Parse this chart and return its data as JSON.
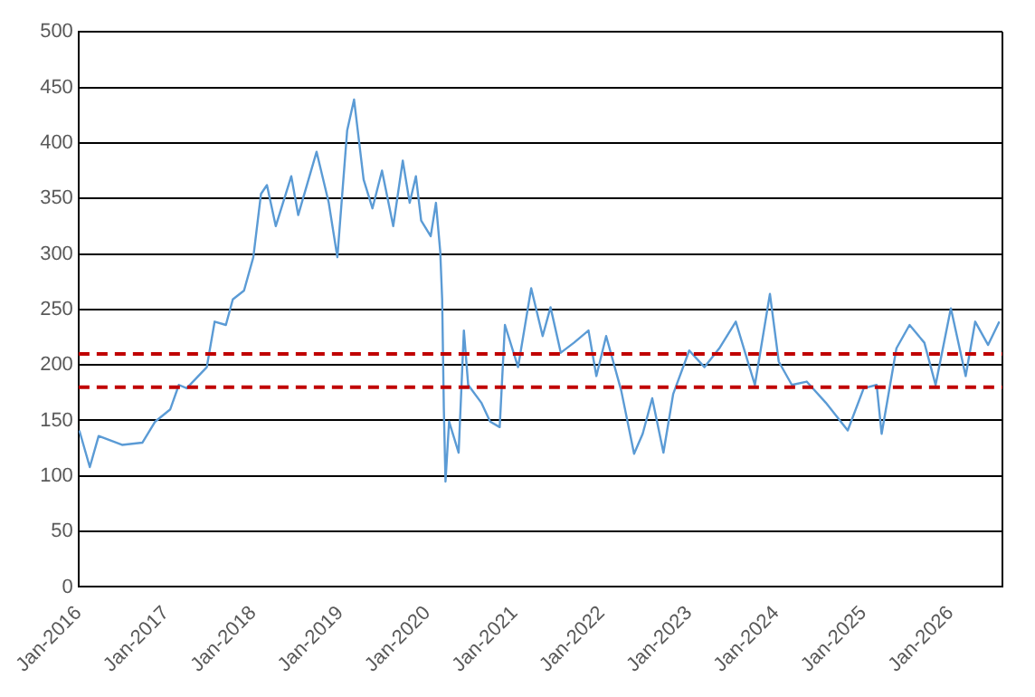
{
  "chart_data": {
    "type": "line",
    "x": [
      "2016-01-04",
      "2016-02-17",
      "2016-03-25",
      "2016-07-01",
      "2016-09-24",
      "2016-11-17",
      "2017-01-19",
      "2017-02-24",
      "2017-03-29",
      "2017-06-21",
      "2017-07-24",
      "2017-09-09",
      "2017-10-08",
      "2017-11-24",
      "2018-01-02",
      "2018-02-03",
      "2018-02-28",
      "2018-04-06",
      "2018-06-10",
      "2018-07-09",
      "2018-09-24",
      "2018-11-14",
      "2018-12-20",
      "2019-01-30",
      "2019-02-28",
      "2019-04-09",
      "2019-05-16",
      "2019-06-25",
      "2019-08-11",
      "2019-09-20",
      "2019-10-19",
      "2019-11-14",
      "2019-12-06",
      "2020-01-15",
      "2020-02-06",
      "2020-02-24",
      "2020-03-03",
      "2020-03-10",
      "2020-03-17",
      "2020-04-01",
      "2020-05-11",
      "2020-06-02",
      "2020-06-20",
      "2020-08-14",
      "2020-09-20",
      "2020-10-30",
      "2020-11-21",
      "2021-01-15",
      "2021-03-11",
      "2021-04-28",
      "2021-05-31",
      "2021-07-13",
      "2021-09-06",
      "2021-11-06",
      "2021-12-09",
      "2022-01-19",
      "2022-03-23",
      "2022-05-16",
      "2022-06-21",
      "2022-07-31",
      "2022-09-16",
      "2022-10-27",
      "2023-01-02",
      "2023-03-07",
      "2023-05-08",
      "2023-07-16",
      "2023-10-04",
      "2023-12-06",
      "2024-01-12",
      "2024-03-07",
      "2024-05-08",
      "2024-07-27",
      "2024-10-27",
      "2025-01-02",
      "2025-02-25",
      "2025-03-18",
      "2025-05-19",
      "2025-07-13",
      "2025-09-13",
      "2025-10-30",
      "2026-01-02",
      "2026-03-05",
      "2026-04-14",
      "2026-06-07",
      "2026-07-24"
    ],
    "series": [
      {
        "color": "#5b9bd5",
        "values": [
          141,
          108,
          136,
          128,
          130,
          149,
          160,
          182,
          179,
          198,
          239,
          236,
          259,
          267,
          297,
          354,
          362,
          325,
          370,
          335,
          392,
          346,
          297,
          411,
          439,
          367,
          341,
          375,
          325,
          384,
          346,
          370,
          330,
          316,
          346,
          302,
          259,
          161,
          95,
          149,
          121,
          231,
          182,
          166,
          149,
          144,
          236,
          198,
          269,
          226,
          252,
          211,
          220,
          231,
          190,
          226,
          177,
          120,
          138,
          170,
          121,
          174,
          213,
          198,
          215,
          239,
          182,
          264,
          203,
          182,
          185,
          166,
          141,
          179,
          182,
          138,
          215,
          236,
          220,
          182,
          251,
          190,
          239,
          218,
          239
        ]
      }
    ],
    "xlim": [
      "2016-01-01",
      "2026-08-06"
    ],
    "xticks": [
      {
        "value": "2016-01",
        "label": "Jan-2016"
      },
      {
        "value": "2017-01",
        "label": "Jan-2017"
      },
      {
        "value": "2018-01",
        "label": "Jan-2018"
      },
      {
        "value": "2019-01",
        "label": "Jan-2019"
      },
      {
        "value": "2020-01",
        "label": "Jan-2020"
      },
      {
        "value": "2021-01",
        "label": "Jan-2021"
      },
      {
        "value": "2022-01",
        "label": "Jan-2022"
      },
      {
        "value": "2023-01",
        "label": "Jan-2023"
      },
      {
        "value": "2024-01",
        "label": "Jan-2024"
      },
      {
        "value": "2025-01",
        "label": "Jan-2025"
      },
      {
        "value": "2026-01",
        "label": "Jan-2026"
      }
    ],
    "ylim": [
      0,
      500
    ],
    "yticks": [
      0,
      50,
      100,
      150,
      200,
      250,
      300,
      350,
      400,
      450,
      500
    ],
    "grid": "y",
    "legend": false,
    "marker": "none",
    "line_style": "solid",
    "ref_lines": [
      {
        "axis": "y",
        "value": 210,
        "color": "#c00000",
        "line_style": "dashed"
      },
      {
        "axis": "y",
        "value": 180,
        "color": "#c00000",
        "line_style": "dashed"
      }
    ]
  }
}
